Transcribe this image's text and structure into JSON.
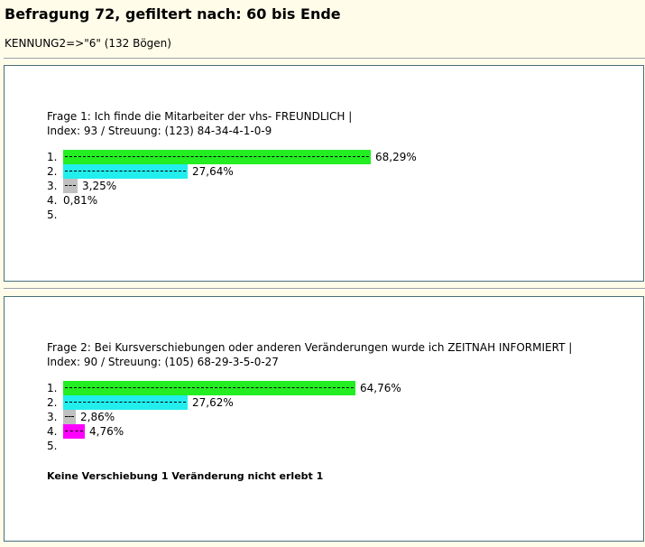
{
  "header": {
    "title": "Befragung 72, gefiltert nach: 60 bis Ende",
    "filter": "KENNUNG2=>\"6\" (132 Bögen)"
  },
  "chart_data": [
    {
      "type": "bar",
      "title": "Frage 1: Ich finde die Mitarbeiter der vhs- FREUNDLICH |",
      "subtitle": "Index: 93 / Streuung: (123) 84-34-4-1-0-9",
      "categories": [
        "1.",
        "2.",
        "3.",
        "4.",
        "5."
      ],
      "values": [
        68.29,
        27.64,
        3.25,
        0.81,
        null
      ],
      "labels": [
        "68,29%",
        "27,64%",
        "3,25%",
        "0,81%",
        ""
      ],
      "colors": [
        "#22ee22",
        "#22eeee",
        "#c0c0c0",
        "#ff00ff",
        "#ff8800"
      ],
      "note": ""
    },
    {
      "type": "bar",
      "title": "Frage 2: Bei Kursverschiebungen oder anderen Veränderungen wurde ich ZEITNAH INFORMIERT |",
      "subtitle": "Index: 90 / Streuung: (105) 68-29-3-5-0-27",
      "categories": [
        "1.",
        "2.",
        "3.",
        "4.",
        "5."
      ],
      "values": [
        64.76,
        27.62,
        2.86,
        4.76,
        null
      ],
      "labels": [
        "64,76%",
        "27,62%",
        "2,86%",
        "4,76%",
        ""
      ],
      "colors": [
        "#22ee22",
        "#22eeee",
        "#c0c0c0",
        "#ff00ff",
        "#ff8800"
      ],
      "note": "Keine Verschiebung 1 Veränderung nicht erlebt 1"
    }
  ]
}
